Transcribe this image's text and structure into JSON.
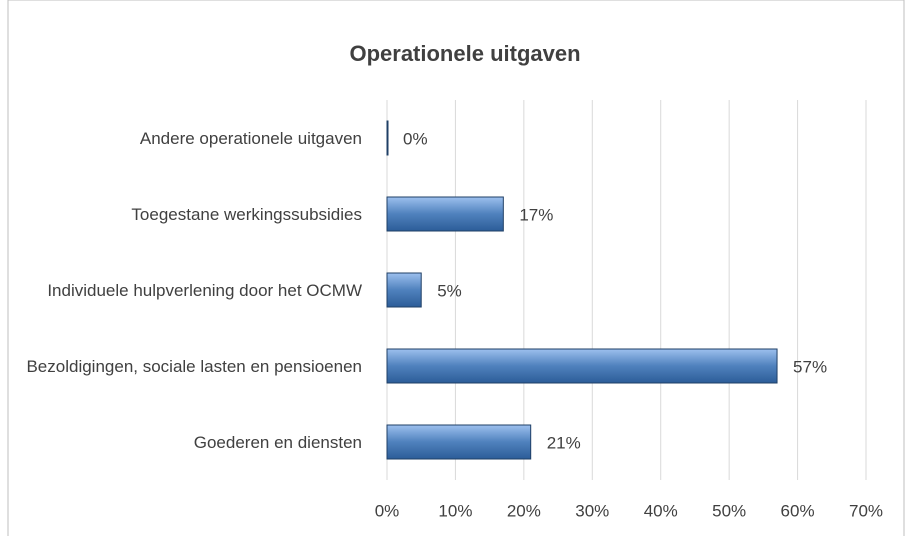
{
  "chart_data": {
    "type": "bar",
    "orientation": "horizontal",
    "title": "Operationele uitgaven",
    "categories": [
      "Andere operationele uitgaven",
      "Toegestane werkingssubsidies",
      "Individuele hulpverlening door het OCMW",
      "Bezoldigingen, sociale lasten en pensioenen",
      "Goederen en diensten"
    ],
    "values": [
      0,
      17,
      5,
      57,
      21
    ],
    "value_labels": [
      "0%",
      "17%",
      "5%",
      "57%",
      "21%"
    ],
    "color": "#4f81bd",
    "xlim": [
      0,
      70
    ],
    "xticks": [
      {
        "value": 0,
        "label": "0%"
      },
      {
        "value": 10,
        "label": "10%"
      },
      {
        "value": 20,
        "label": "20%"
      },
      {
        "value": 30,
        "label": "30%"
      },
      {
        "value": 40,
        "label": "40%"
      },
      {
        "value": 50,
        "label": "50%"
      },
      {
        "value": 60,
        "label": "60%"
      },
      {
        "value": 70,
        "label": "70%"
      }
    ],
    "grid": true
  }
}
